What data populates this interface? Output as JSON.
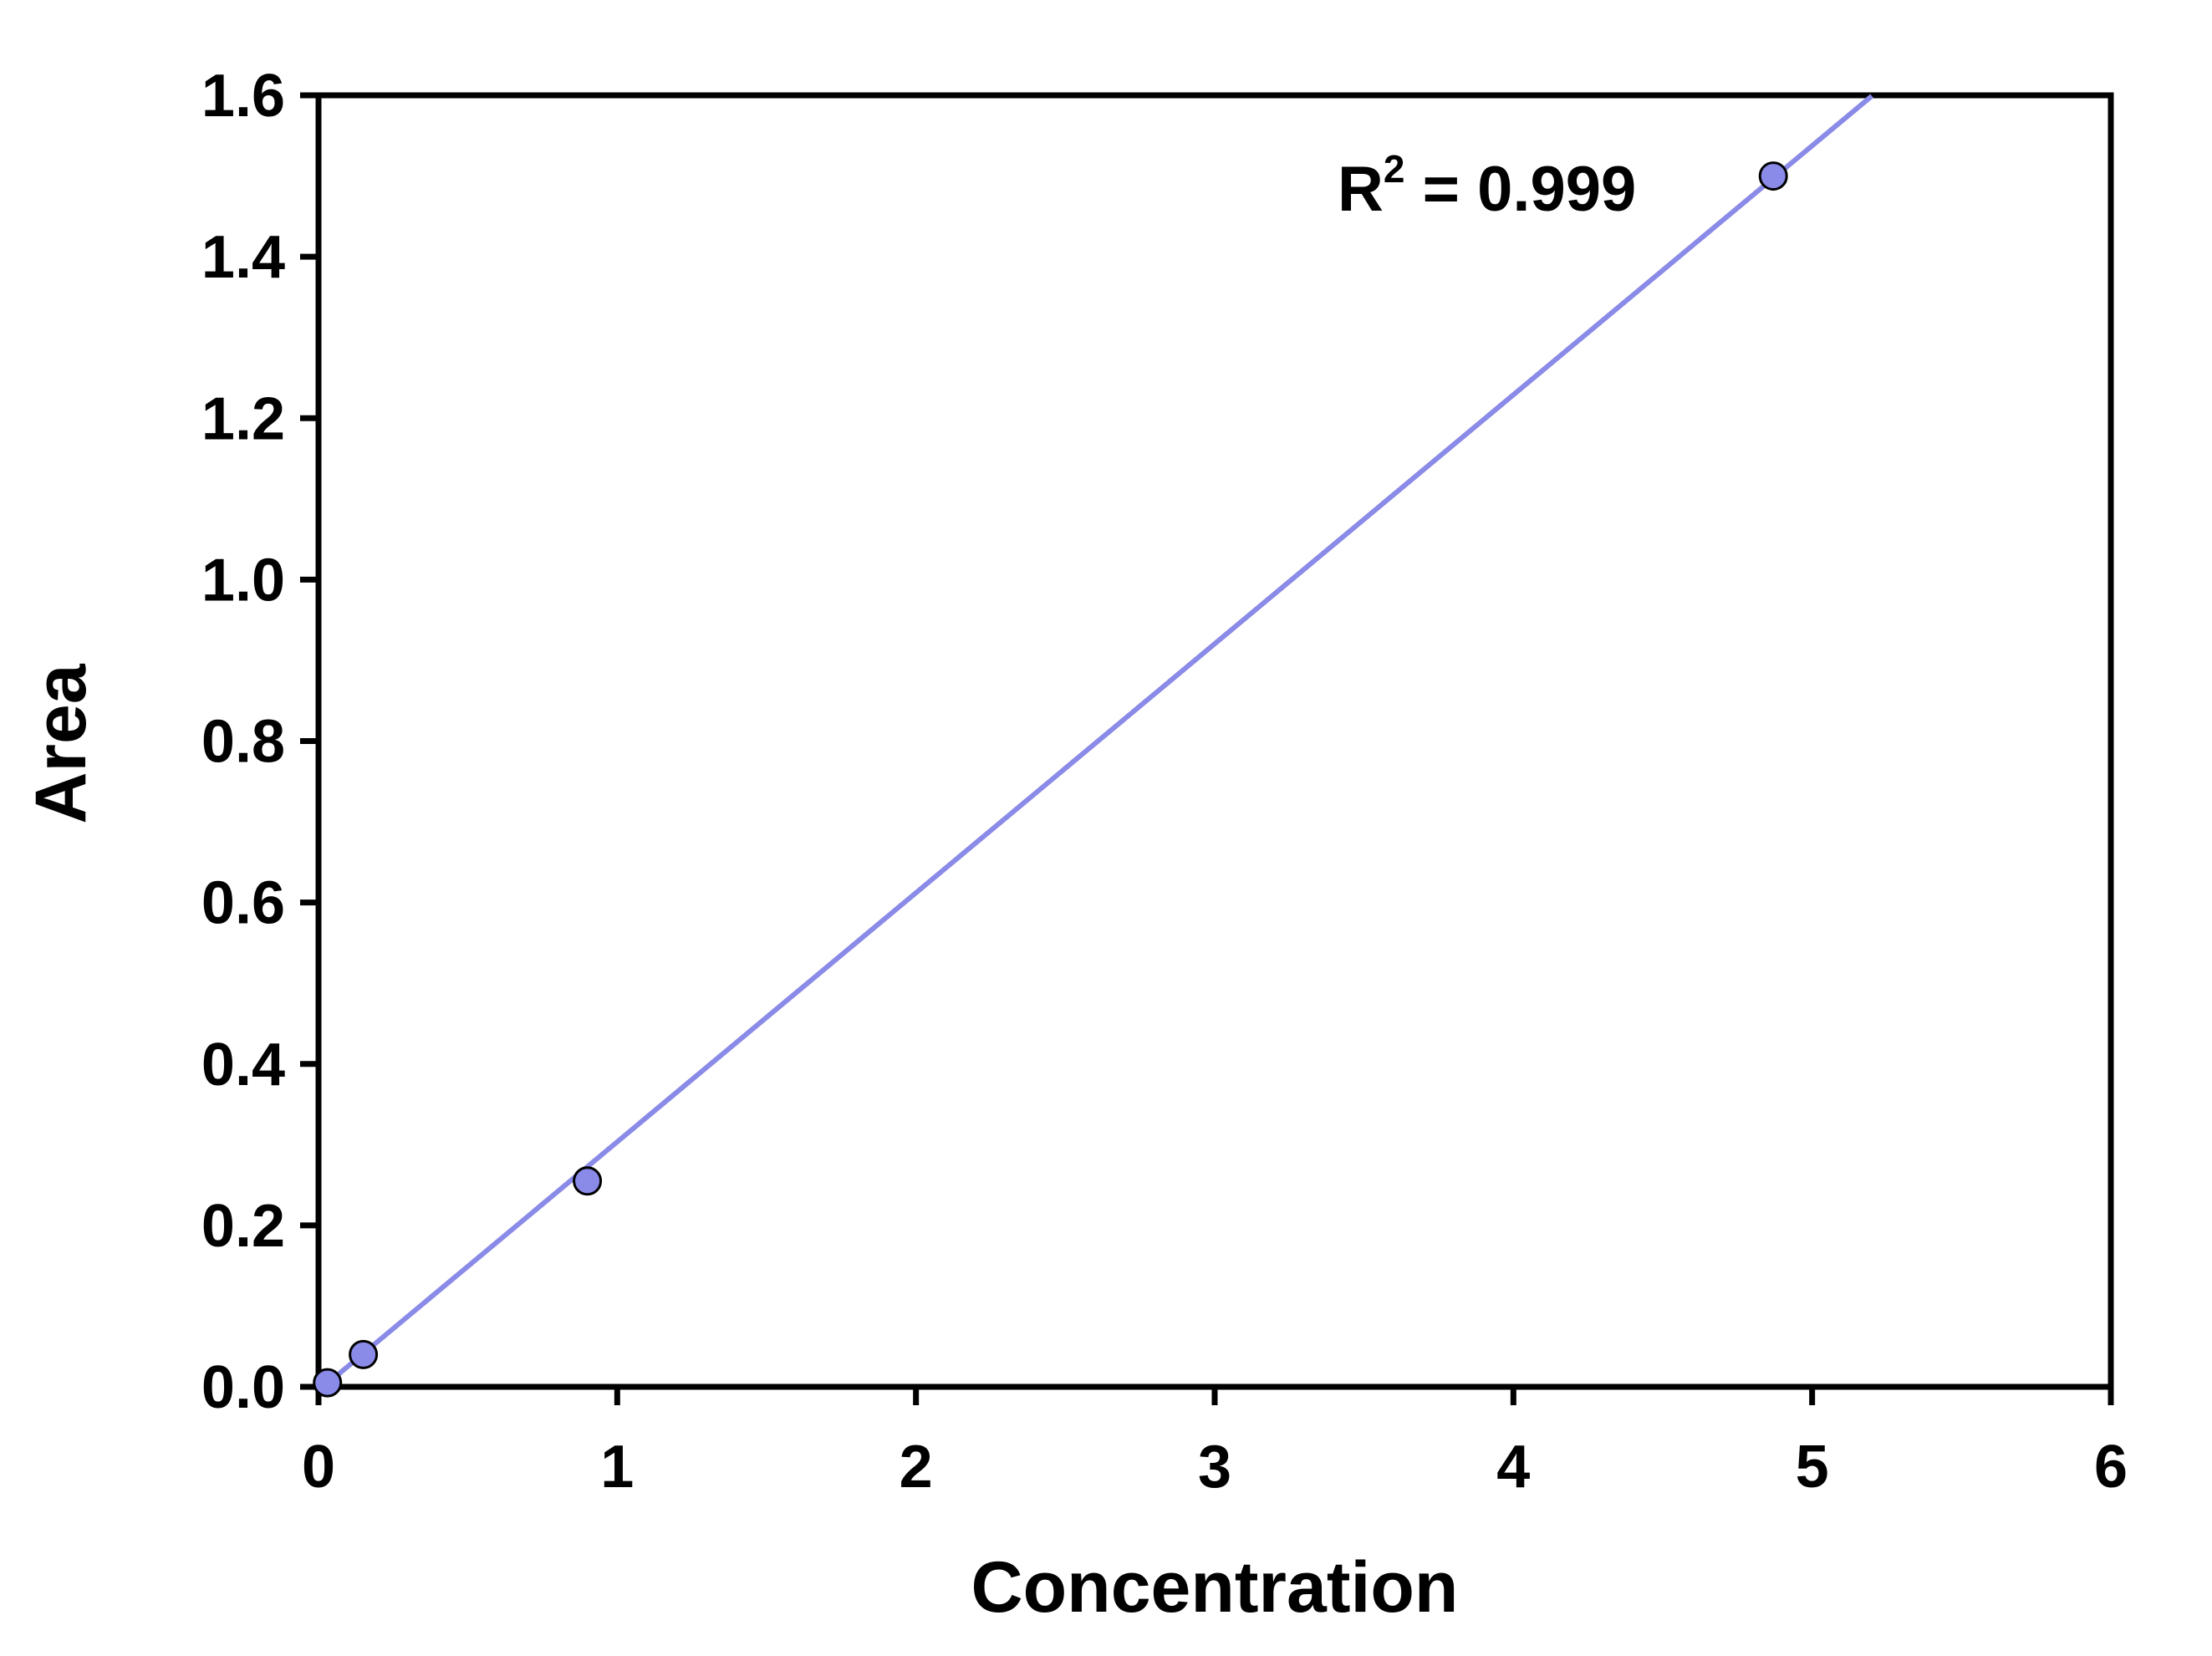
{
  "chart_data": {
    "type": "scatter",
    "title": "",
    "xlabel": "Concentration",
    "ylabel": "Area",
    "xlim": [
      0,
      6
    ],
    "ylim": [
      0,
      1.6
    ],
    "x_ticks": [
      "0",
      "1",
      "2",
      "3",
      "4",
      "5",
      "6"
    ],
    "y_ticks": [
      "0.0",
      "0.2",
      "0.4",
      "0.6",
      "0.8",
      "1.0",
      "1.2",
      "1.4",
      "1.6"
    ],
    "grid": false,
    "legend": "none",
    "series": [
      {
        "points": [
          {
            "x": 0.03,
            "y": 0.005
          },
          {
            "x": 0.15,
            "y": 0.04
          },
          {
            "x": 0.9,
            "y": 0.255
          },
          {
            "x": 4.87,
            "y": 1.5
          }
        ]
      }
    ],
    "trendline": {
      "type": "linear",
      "x_range": [
        0.03,
        5.2
      ],
      "slope": 0.3085,
      "intercept": -0.005
    },
    "annotation": {
      "text": "R",
      "superscript": "2",
      "suffix": " = 0.999"
    },
    "colors": {
      "marker_fill": "#8A8AE8",
      "trendline": "#8A8AE8",
      "axis": "#000000"
    }
  }
}
